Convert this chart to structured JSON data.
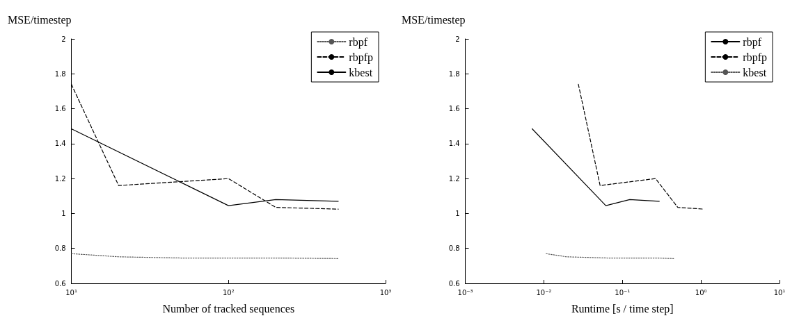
{
  "chart_data": [
    {
      "type": "line",
      "ylabel": "MSE/timestep",
      "xlabel": "Number of tracked sequences",
      "log": "x",
      "xlim": [
        10,
        1000
      ],
      "xticks": [
        {
          "value": 10,
          "label": "10¹"
        },
        {
          "value": 100,
          "label": "10²"
        },
        {
          "value": 1000,
          "label": "10³"
        }
      ],
      "ylim": [
        0.6,
        2
      ],
      "yticks": [
        {
          "value": 0.6,
          "label": "0.6"
        },
        {
          "value": 0.8,
          "label": "0.8"
        },
        {
          "value": 1,
          "label": "1"
        },
        {
          "value": 1.2,
          "label": "1.2"
        },
        {
          "value": 1.4,
          "label": "1.4"
        },
        {
          "value": 1.6,
          "label": "1.6"
        },
        {
          "value": 1.8,
          "label": "1.8"
        },
        {
          "value": 2,
          "label": "2"
        }
      ],
      "legend": "top right",
      "grid": false,
      "marker": "none",
      "series": [
        {
          "name": "rbpf",
          "color": "#555555",
          "line_style": "dotted",
          "x": [
            10,
            20,
            50,
            100,
            200,
            500
          ],
          "values": [
            0.77,
            0.752,
            0.745,
            0.745,
            0.745,
            0.742
          ]
        },
        {
          "name": "rbpfp",
          "color": "#000000",
          "line_style": "dashed",
          "x": [
            10,
            20,
            100,
            200,
            500
          ],
          "values": [
            1.74,
            1.16,
            1.2,
            1.035,
            1.025
          ]
        },
        {
          "name": "kbest",
          "color": "#000000",
          "line_style": "solid",
          "x": [
            10,
            100,
            200,
            500
          ],
          "values": [
            1.485,
            1.045,
            1.08,
            1.07
          ]
        }
      ]
    },
    {
      "type": "line",
      "ylabel": "MSE/timestep",
      "xlabel": "Runtime [s / time step]",
      "log": "x",
      "xlim": [
        0.001,
        10
      ],
      "xticks": [
        {
          "value": 0.001,
          "label": "10⁻³"
        },
        {
          "value": 0.01,
          "label": "10⁻²"
        },
        {
          "value": 0.1,
          "label": "10⁻¹"
        },
        {
          "value": 1,
          "label": "10⁰"
        },
        {
          "value": 10,
          "label": "10¹"
        }
      ],
      "ylim": [
        0.6,
        2
      ],
      "yticks": [
        {
          "value": 0.6,
          "label": "0.6"
        },
        {
          "value": 0.8,
          "label": "0.8"
        },
        {
          "value": 1,
          "label": "1"
        },
        {
          "value": 1.2,
          "label": "1.2"
        },
        {
          "value": 1.4,
          "label": "1.4"
        },
        {
          "value": 1.6,
          "label": "1.6"
        },
        {
          "value": 1.8,
          "label": "1.8"
        },
        {
          "value": 2,
          "label": "2"
        }
      ],
      "legend": "top right",
      "grid": false,
      "marker": "none",
      "series": [
        {
          "name": "rbpf",
          "color": "#000000",
          "line_style": "solid",
          "x": [
            0.0071,
            0.0615,
            0.124,
            0.295
          ],
          "values": [
            1.485,
            1.045,
            1.08,
            1.07
          ]
        },
        {
          "name": "rbpfp",
          "color": "#000000",
          "line_style": "dashed",
          "x": [
            0.0275,
            0.052,
            0.264,
            0.507,
            1.08
          ],
          "values": [
            1.74,
            1.16,
            1.2,
            1.035,
            1.025
          ]
        },
        {
          "name": "kbest",
          "color": "#555555",
          "line_style": "dotted",
          "x": [
            0.0107,
            0.0194,
            0.065,
            0.267,
            0.452
          ],
          "values": [
            0.77,
            0.752,
            0.745,
            0.745,
            0.742
          ]
        }
      ]
    }
  ]
}
